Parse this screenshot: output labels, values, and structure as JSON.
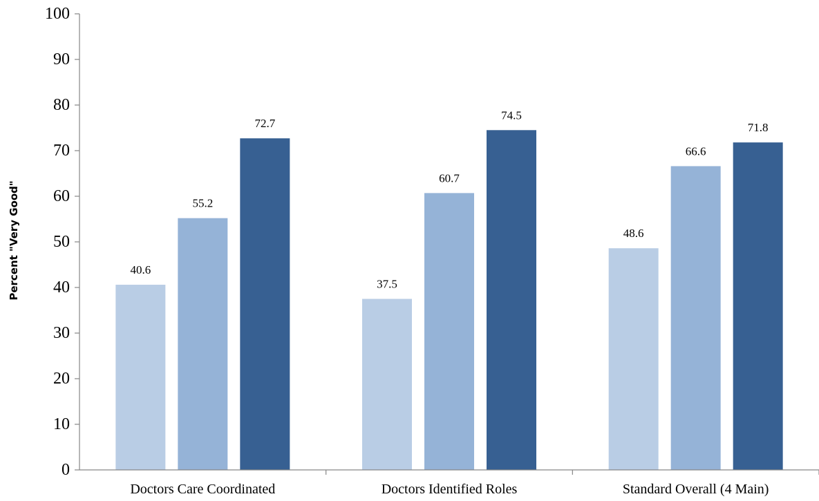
{
  "chart_data": {
    "type": "bar",
    "title": "",
    "xlabel": "",
    "ylabel": "Percent \"Very Good\"",
    "ylim": [
      0,
      100
    ],
    "yticks": [
      "0",
      "10",
      "20",
      "30",
      "40",
      "50",
      "60",
      "70",
      "80",
      "90",
      "100"
    ],
    "grid": false,
    "legend": "none",
    "categories": [
      "Doctors Care Coordinated",
      "Doctors Identified Roles",
      "Standard Overall (4 Main)"
    ],
    "series": [
      {
        "color": "#b9cde5",
        "values": [
          40.6,
          37.5,
          48.6
        ]
      },
      {
        "color": "#95b3d7",
        "values": [
          55.2,
          60.7,
          66.6
        ]
      },
      {
        "color": "#376092",
        "values": [
          72.7,
          74.5,
          71.8
        ]
      }
    ]
  }
}
